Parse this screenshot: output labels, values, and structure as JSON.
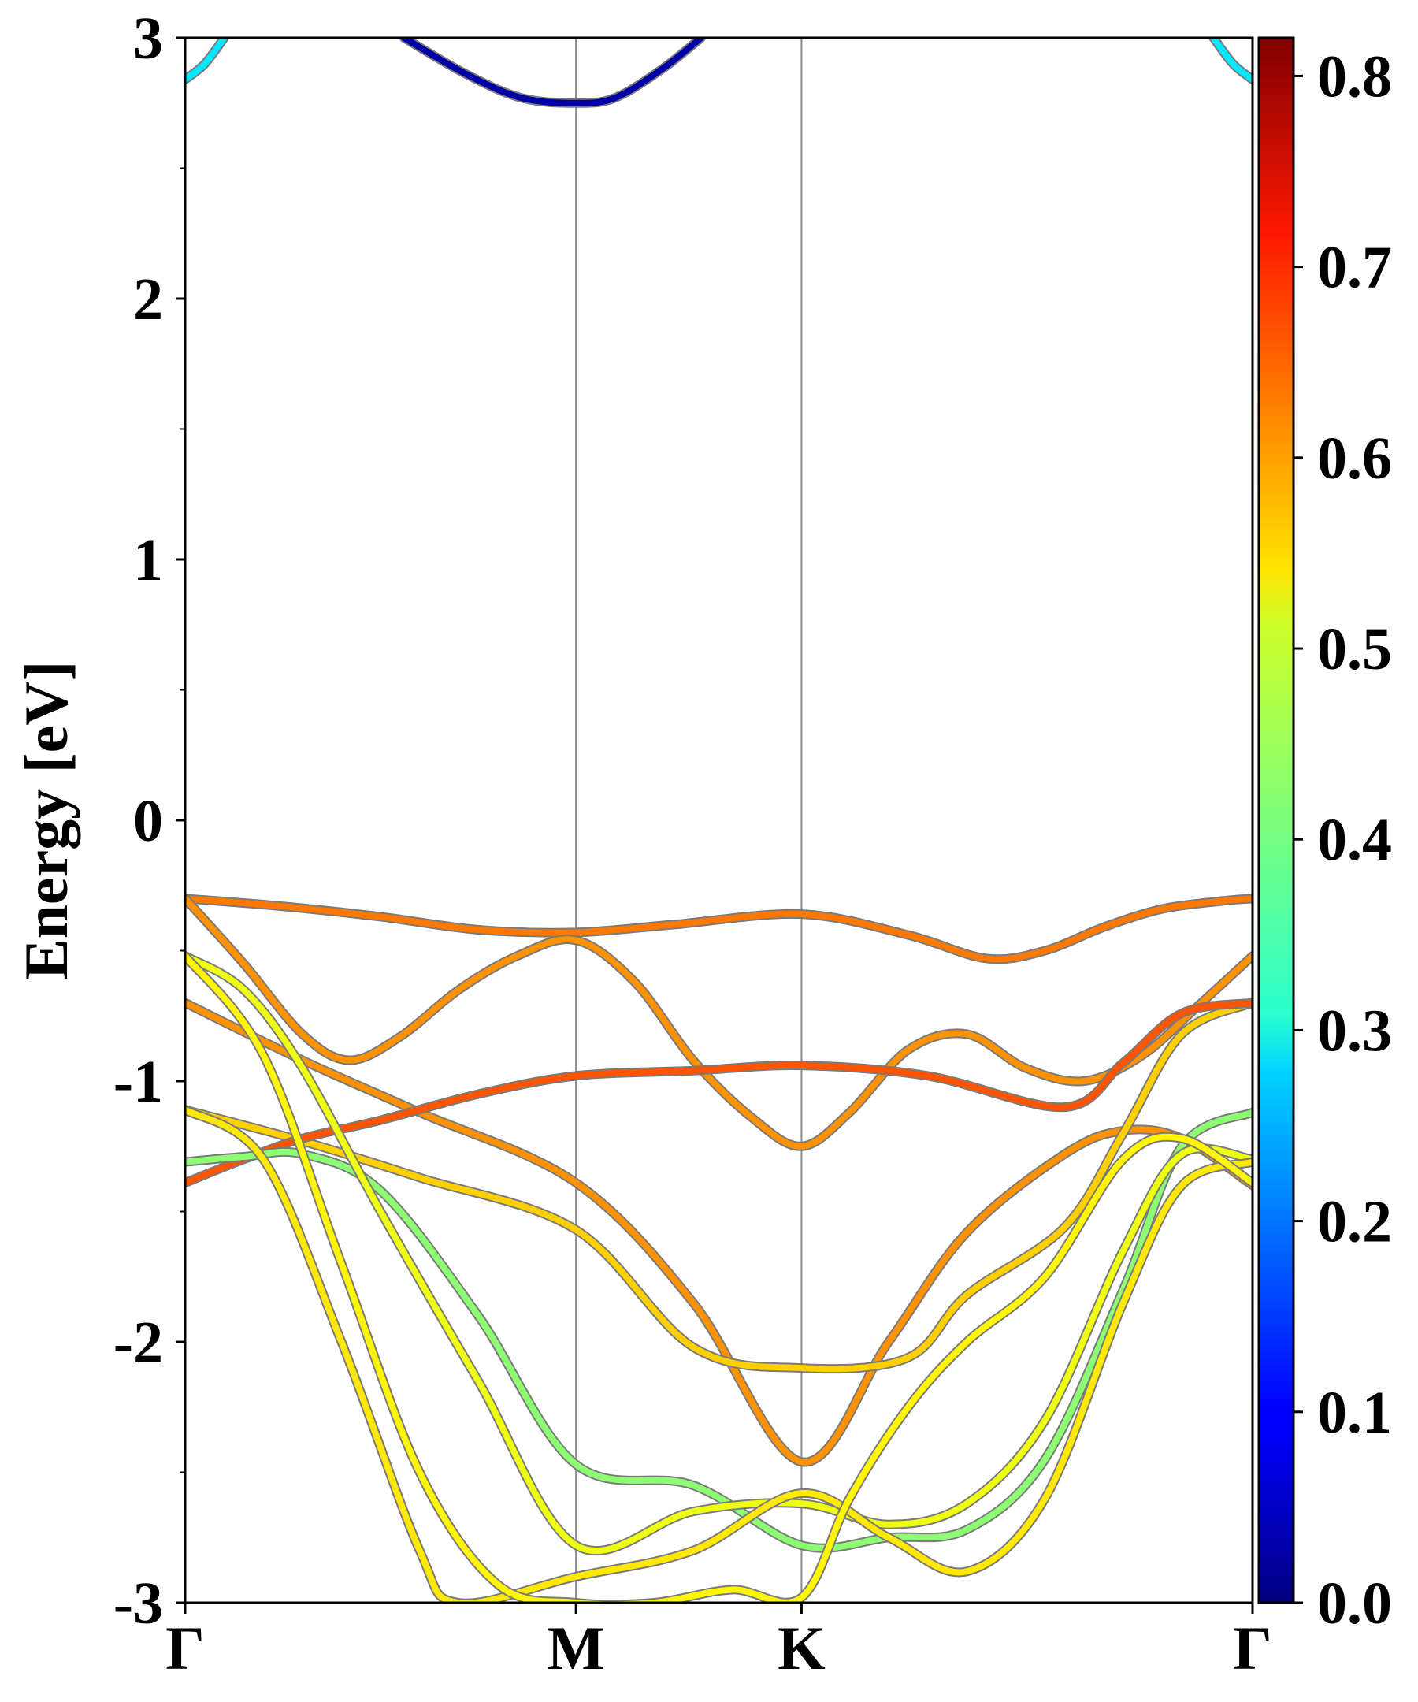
{
  "chart_data": {
    "type": "line",
    "ylabel": "Energy [eV]",
    "ylim": [
      -3,
      3
    ],
    "y_ticks": [
      "3",
      "2",
      "1",
      "0",
      "-1",
      "-2",
      "-3"
    ],
    "x_ticks": [
      "Γ",
      "M",
      "K",
      "Γ"
    ],
    "x_tick_positions": [
      0,
      1,
      1.577,
      2.731
    ],
    "colorbar": {
      "colormap": "jet",
      "range": [
        0.0,
        0.82
      ],
      "ticks": [
        "0.8",
        "0.7",
        "0.6",
        "0.5",
        "0.4",
        "0.3",
        "0.2",
        "0.1",
        "0.0"
      ]
    },
    "series": [
      {
        "k": [
          0,
          0.05,
          0.1
        ],
        "energy": [
          2.84,
          2.9,
          3.0
        ],
        "weight": 0.29
      },
      {
        "k": [
          2.631,
          2.681,
          2.731
        ],
        "energy": [
          3.0,
          2.9,
          2.84
        ],
        "weight": 0.29
      },
      {
        "k": [
          0.56,
          0.72,
          0.86,
          1.0,
          1.1,
          1.22,
          1.32
        ],
        "energy": [
          3.0,
          2.86,
          2.77,
          2.75,
          2.77,
          2.88,
          3.0
        ],
        "weight": 0.03
      },
      {
        "k": [
          0,
          0.25,
          0.5,
          0.75,
          1.0,
          1.25,
          1.577,
          1.85,
          2.05,
          2.2,
          2.35,
          2.5,
          2.65,
          2.731
        ],
        "energy": [
          -0.3,
          -0.33,
          -0.37,
          -0.42,
          -0.43,
          -0.4,
          -0.36,
          -0.44,
          -0.53,
          -0.5,
          -0.41,
          -0.34,
          -0.31,
          -0.3
        ],
        "weight": 0.62
      },
      {
        "k": [
          0,
          0.15,
          0.3,
          0.42,
          0.55,
          0.7,
          0.85,
          1.0,
          1.15,
          1.3,
          1.45,
          1.577,
          1.7,
          1.85,
          2.0,
          2.15,
          2.3,
          2.45,
          2.6,
          2.731
        ],
        "energy": [
          -0.3,
          -0.55,
          -0.82,
          -0.92,
          -0.83,
          -0.65,
          -0.52,
          -0.46,
          -0.62,
          -0.92,
          -1.14,
          -1.25,
          -1.12,
          -0.88,
          -0.82,
          -0.95,
          -1.0,
          -0.9,
          -0.7,
          -0.52
        ],
        "weight": 0.6
      },
      {
        "k": [
          0,
          0.3,
          0.6,
          1.0,
          1.3,
          1.577,
          1.8,
          2.0,
          2.25,
          2.4,
          2.55,
          2.731
        ],
        "energy": [
          -0.7,
          -0.92,
          -1.12,
          -1.39,
          -1.85,
          -2.46,
          -2.0,
          -1.58,
          -1.28,
          -1.19,
          -1.22,
          -1.4
        ],
        "weight": 0.6
      },
      {
        "k": [
          0,
          0.3,
          0.6,
          1.0,
          1.3,
          1.577,
          1.85,
          2.0,
          2.25,
          2.4,
          2.55,
          2.731
        ],
        "energy": [
          -1.11,
          -1.23,
          -1.37,
          -1.57,
          -2.02,
          -2.1,
          -2.06,
          -1.82,
          -1.56,
          -1.2,
          -0.82,
          -0.7
        ],
        "weight": 0.55
      },
      {
        "k": [
          0,
          0.15,
          0.3,
          0.5,
          0.75,
          1.0,
          1.3,
          1.577,
          1.9,
          2.25,
          2.4,
          2.55,
          2.731
        ],
        "energy": [
          -1.39,
          -1.3,
          -1.22,
          -1.15,
          -1.05,
          -0.98,
          -0.96,
          -0.94,
          -0.98,
          -1.1,
          -0.93,
          -0.74,
          -0.7
        ],
        "weight": 0.65
      },
      {
        "k": [
          0,
          0.15,
          0.3,
          0.5,
          0.75,
          1.0,
          1.3,
          1.577,
          1.8,
          2.0,
          2.2,
          2.4,
          2.55,
          2.731
        ],
        "energy": [
          -1.31,
          -1.29,
          -1.28,
          -1.42,
          -1.9,
          -2.47,
          -2.55,
          -2.78,
          -2.75,
          -2.72,
          -2.45,
          -1.8,
          -1.25,
          -1.12
        ],
        "weight": 0.42
      },
      {
        "k": [
          0,
          0.15,
          0.3,
          0.5,
          0.75,
          1.0,
          1.3,
          1.577,
          1.8,
          2.0,
          2.2,
          2.4,
          2.55,
          2.731
        ],
        "energy": [
          -0.52,
          -0.65,
          -0.95,
          -1.5,
          -2.15,
          -2.78,
          -2.65,
          -2.62,
          -2.7,
          -2.62,
          -2.3,
          -1.65,
          -1.28,
          -1.3
        ],
        "weight": 0.5
      },
      {
        "k": [
          0,
          0.2,
          0.4,
          0.6,
          0.7,
          1.0,
          1.3,
          1.577,
          1.8,
          2.0,
          2.2,
          2.4,
          2.55,
          2.731
        ],
        "energy": [
          -1.11,
          -1.3,
          -2.0,
          -2.8,
          -3.0,
          -2.9,
          -2.8,
          -2.58,
          -2.75,
          -2.88,
          -2.6,
          -1.85,
          -1.4,
          -1.31
        ],
        "weight": 0.53
      },
      {
        "k": [
          0,
          0.2,
          0.4,
          0.6,
          0.8,
          1.0,
          1.2,
          1.4,
          1.577,
          1.7,
          1.85,
          2.0,
          2.2,
          2.4,
          2.55,
          2.731
        ],
        "energy": [
          -0.52,
          -0.9,
          -1.7,
          -2.5,
          -2.93,
          -3.0,
          -3.0,
          -2.95,
          -2.98,
          -2.6,
          -2.25,
          -2.0,
          -1.75,
          -1.3,
          -1.22,
          -1.39
        ],
        "weight": 0.52
      }
    ]
  }
}
